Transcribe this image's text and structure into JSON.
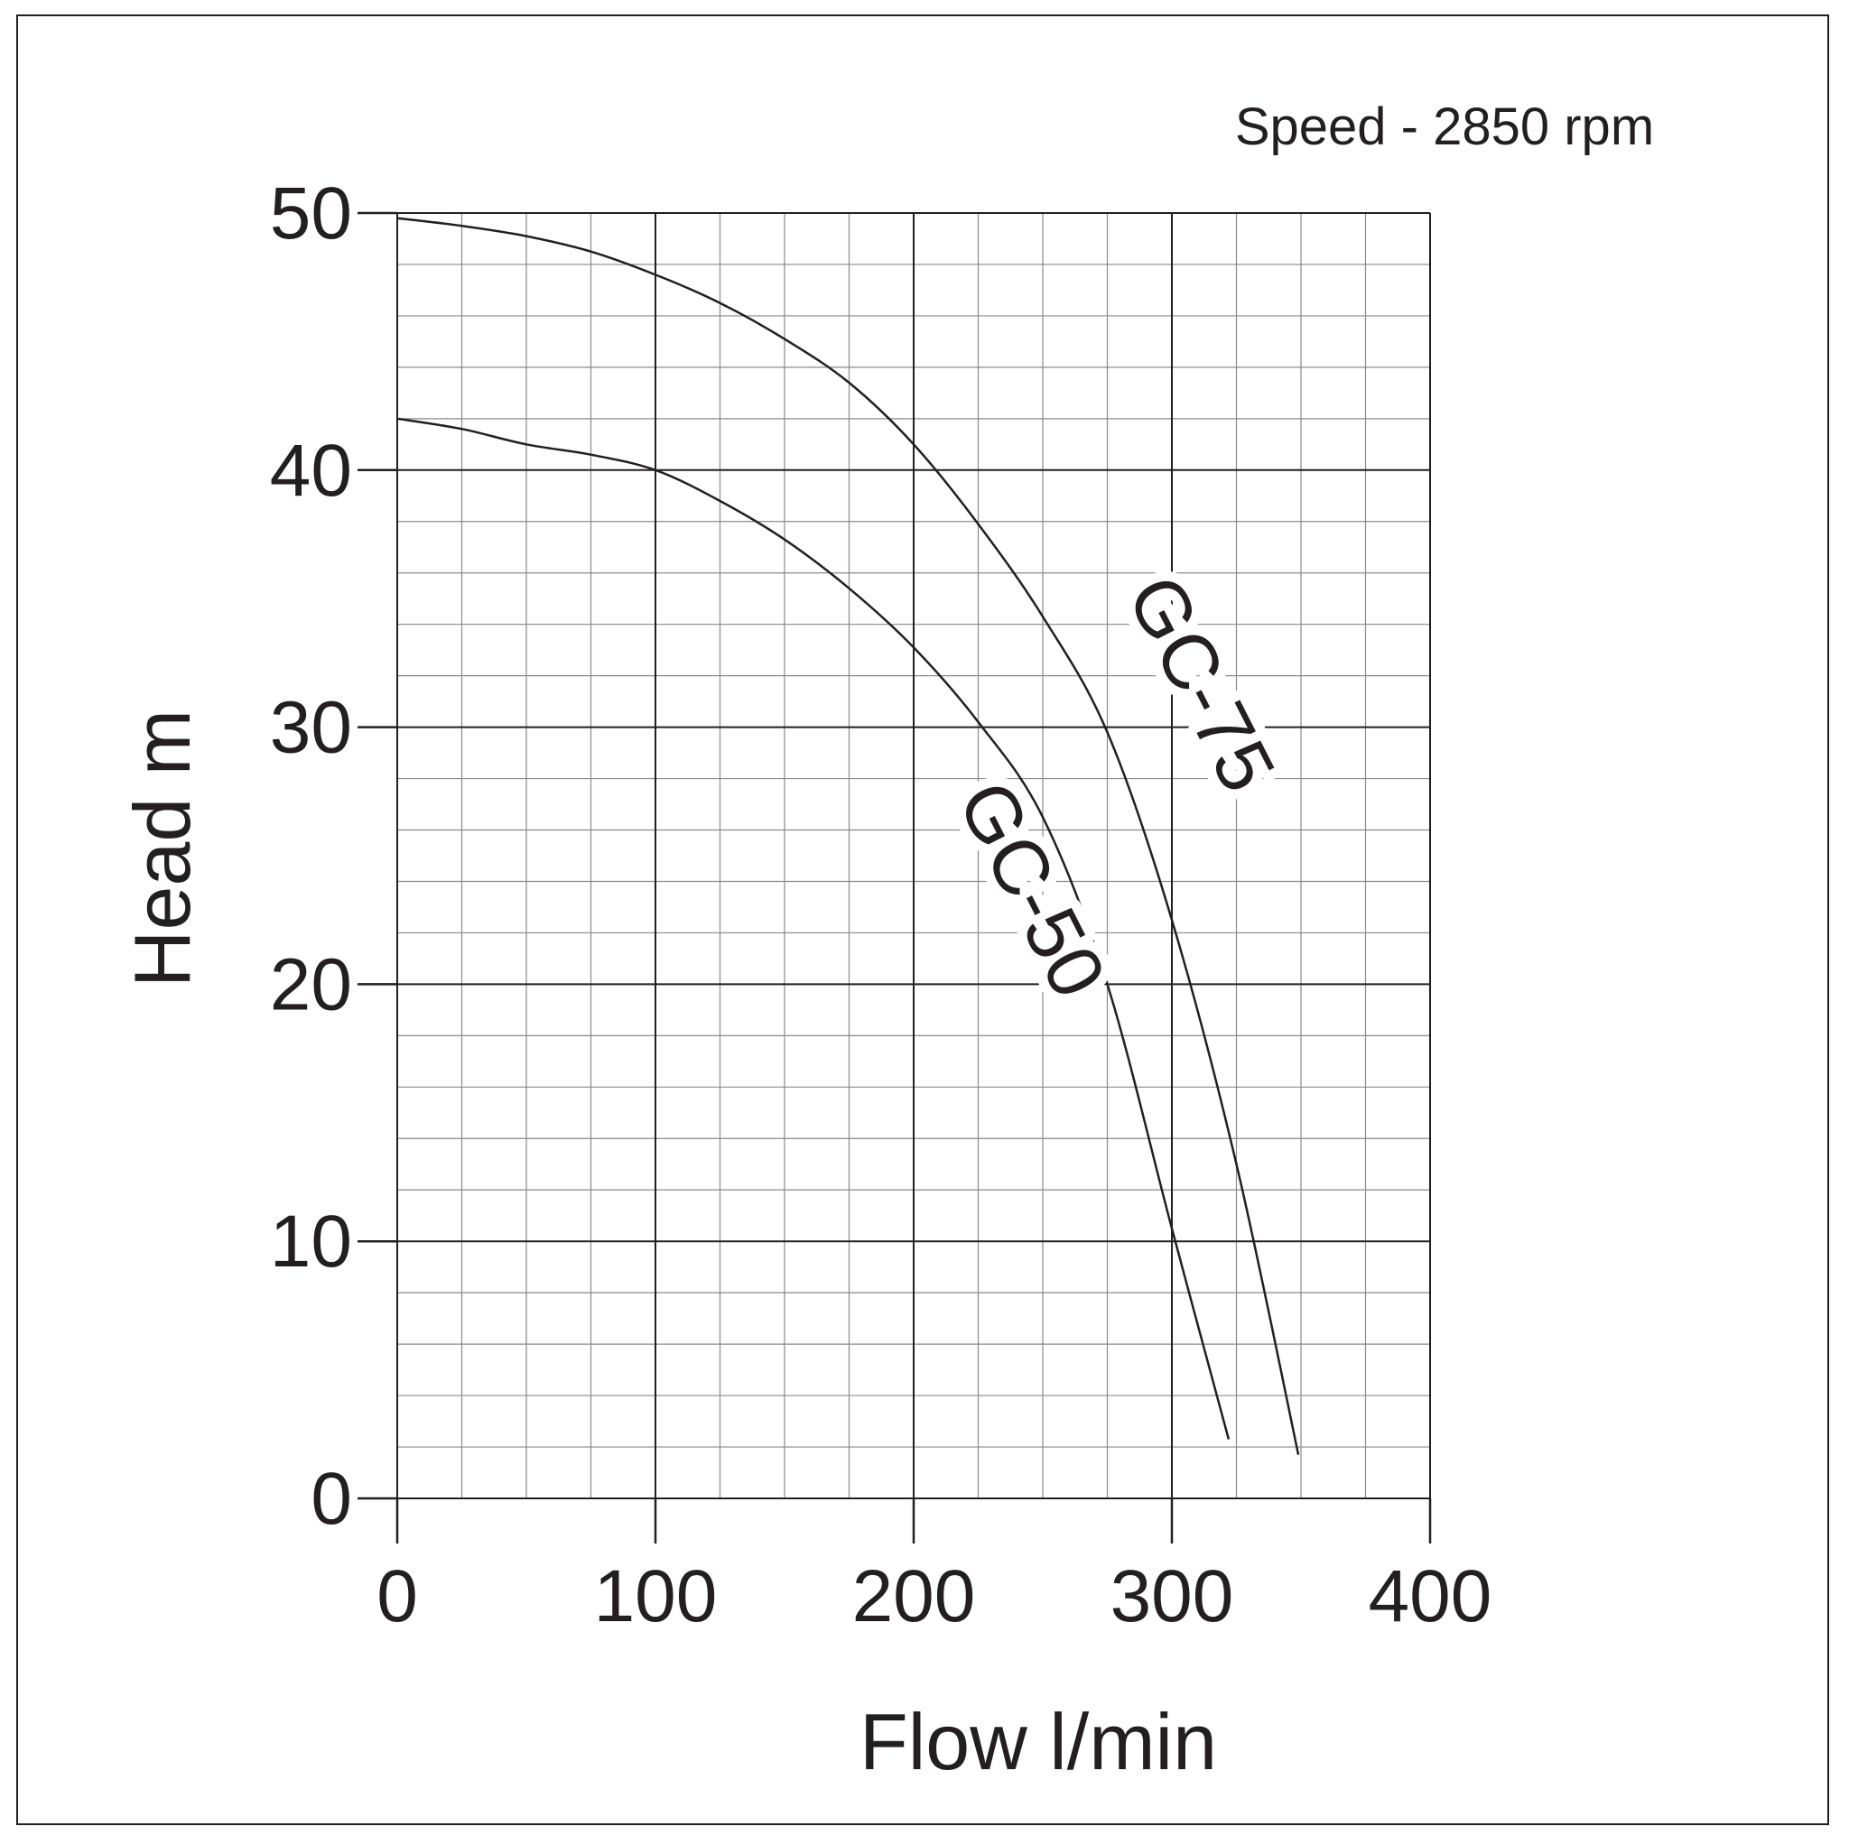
{
  "annotation": "Speed - 2850 rpm",
  "chart_data": {
    "type": "line",
    "xlabel": "Flow l/min",
    "ylabel": "Head m",
    "xlim": [
      0,
      400
    ],
    "ylim": [
      0,
      50
    ],
    "x_ticks": [
      "0",
      "100",
      "200",
      "300",
      "400"
    ],
    "y_ticks": [
      "0",
      "10",
      "20",
      "30",
      "40",
      "50"
    ],
    "grid": true,
    "series": [
      {
        "name": "GC-50",
        "x": [
          0,
          25,
          50,
          75,
          100,
          125,
          150,
          175,
          200,
          225,
          250,
          275,
          300,
          322
        ],
        "y": [
          42.0,
          41.6,
          41.0,
          40.6,
          40.0,
          38.8,
          37.3,
          35.4,
          33.1,
          30.2,
          26.5,
          20.0,
          10.5,
          2.3
        ]
      },
      {
        "name": "GC-75",
        "x": [
          0,
          25,
          50,
          75,
          100,
          125,
          150,
          175,
          200,
          225,
          250,
          275,
          300,
          325,
          349
        ],
        "y": [
          49.8,
          49.5,
          49.1,
          48.5,
          47.6,
          46.5,
          45.1,
          43.4,
          41.0,
          37.9,
          34.3,
          29.8,
          22.5,
          13.0,
          1.7
        ]
      }
    ]
  }
}
